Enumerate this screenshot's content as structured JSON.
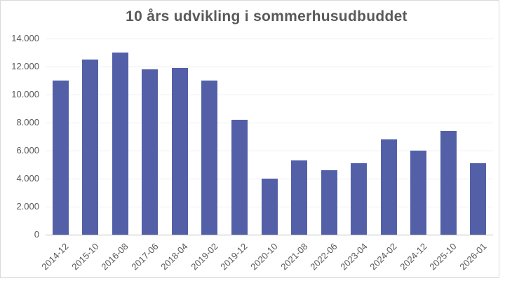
{
  "chart_data": {
    "type": "bar",
    "title": "10 års udvikling i sommerhusudbuddet",
    "xlabel": "",
    "ylabel": "",
    "ylim": [
      0,
      14000
    ],
    "grid": true,
    "legend": null,
    "yticks": [
      "0",
      "2.000",
      "4.000",
      "6.000",
      "8.000",
      "10.000",
      "12.000",
      "14.000"
    ],
    "categories": [
      "2014-12",
      "2015-10",
      "2016-08",
      "2017-06",
      "2018-04",
      "2019-02",
      "2019-12",
      "2020-10",
      "2021-08",
      "2022-06",
      "2023-04",
      "2024-02",
      "2024-12",
      "2025-10",
      "2026-01"
    ],
    "values": [
      11000,
      12500,
      13000,
      11800,
      11900,
      11000,
      8200,
      4000,
      5300,
      4600,
      5100,
      6800,
      6000,
      7400,
      5100
    ],
    "bar_color": "#5360a8"
  }
}
